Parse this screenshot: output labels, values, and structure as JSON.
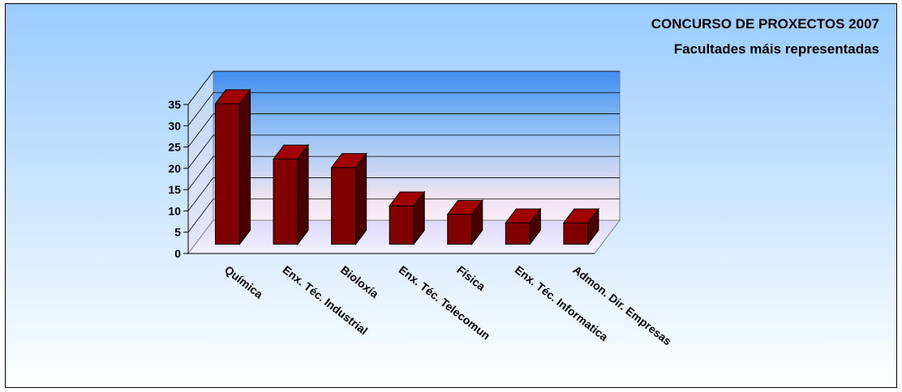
{
  "chart_data": {
    "type": "bar",
    "title": "CONCURSO DE PROXECTOS 2007",
    "subtitle": "Facultades máis representadas",
    "categories": [
      "Química",
      "Enx. Téc. Industrial",
      "Bioloxía",
      "Enx. Téc. Telecomun",
      "Física",
      "Enx. Téc. Informatica",
      "Admon. Dir. Empresas"
    ],
    "values": [
      33,
      20,
      18,
      9,
      7,
      5,
      5
    ],
    "ylim": [
      0,
      35
    ],
    "yticks": [
      "0",
      "5",
      "10",
      "15",
      "20",
      "25",
      "30",
      "35"
    ],
    "grid": true,
    "legend": "none",
    "colors": {
      "bar_front": "#800000",
      "bar_side": "#4a0000",
      "bar_top": "#a00000",
      "bg_top": "#99ccff",
      "bg_bottom": "#ffffff"
    }
  }
}
